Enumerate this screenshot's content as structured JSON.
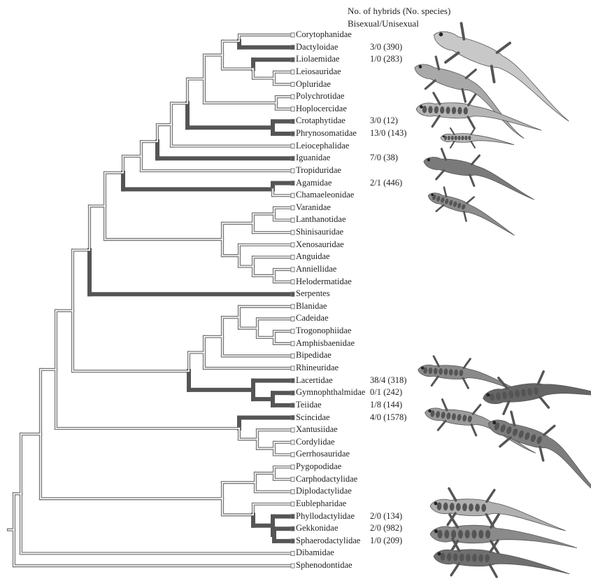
{
  "header": {
    "line1": "No. of hybrids (No. species)",
    "line2": "Bisexual/Unisexual"
  },
  "taxa": [
    {
      "name": "Corytophanidae",
      "hybrids": "",
      "highlight": false
    },
    {
      "name": "Dactyloidae",
      "hybrids": "3/0 (390)",
      "highlight": true
    },
    {
      "name": "Liolaemidae",
      "hybrids": "1/0 (283)",
      "highlight": true
    },
    {
      "name": "Leiosauridae",
      "hybrids": "",
      "highlight": false
    },
    {
      "name": "Opluridae",
      "hybrids": "",
      "highlight": false
    },
    {
      "name": "Polychrotidae",
      "hybrids": "",
      "highlight": false
    },
    {
      "name": "Hoplocercidae",
      "hybrids": "",
      "highlight": false
    },
    {
      "name": "Crotaphytidae",
      "hybrids": "3/0 (12)",
      "highlight": true
    },
    {
      "name": "Phrynosomatidae",
      "hybrids": "13/0 (143)",
      "highlight": true
    },
    {
      "name": "Leiocephalidae",
      "hybrids": "",
      "highlight": false
    },
    {
      "name": "Iguanidae",
      "hybrids": "7/0 (38)",
      "highlight": true
    },
    {
      "name": "Tropiduridae",
      "hybrids": "",
      "highlight": false
    },
    {
      "name": "Agamidae",
      "hybrids": "2/1 (446)",
      "highlight": true
    },
    {
      "name": "Chamaeleonidae",
      "hybrids": "",
      "highlight": false
    },
    {
      "name": "Varanidae",
      "hybrids": "",
      "highlight": false
    },
    {
      "name": "Lanthanotidae",
      "hybrids": "",
      "highlight": false
    },
    {
      "name": "Shinisauridae",
      "hybrids": "",
      "highlight": false
    },
    {
      "name": "Xenosauridae",
      "hybrids": "",
      "highlight": false
    },
    {
      "name": "Anguidae",
      "hybrids": "",
      "highlight": false
    },
    {
      "name": "Anniellidae",
      "hybrids": "",
      "highlight": false
    },
    {
      "name": "Helodermatidae",
      "hybrids": "",
      "highlight": false
    },
    {
      "name": "Serpentes",
      "hybrids": "",
      "highlight": true
    },
    {
      "name": "Blanidae",
      "hybrids": "",
      "highlight": false
    },
    {
      "name": "Cadeidae",
      "hybrids": "",
      "highlight": false
    },
    {
      "name": "Trogonophiidae",
      "hybrids": "",
      "highlight": false
    },
    {
      "name": "Amphisbaenidae",
      "hybrids": "",
      "highlight": false
    },
    {
      "name": "Bipedidae",
      "hybrids": "",
      "highlight": false
    },
    {
      "name": "Rhineuridae",
      "hybrids": "",
      "highlight": false
    },
    {
      "name": "Lacertidae",
      "hybrids": "38/4 (318)",
      "highlight": true
    },
    {
      "name": "Gymnophthalmidae",
      "hybrids": "0/1 (242)",
      "highlight": true
    },
    {
      "name": "Teiidae",
      "hybrids": "1/8 (144)",
      "highlight": true
    },
    {
      "name": "Scincidae",
      "hybrids": "4/0 (1578)",
      "highlight": true
    },
    {
      "name": "Xantusiidae",
      "hybrids": "",
      "highlight": false
    },
    {
      "name": "Cordylidae",
      "hybrids": "",
      "highlight": false
    },
    {
      "name": "Gerrhosauridae",
      "hybrids": "",
      "highlight": false
    },
    {
      "name": "Pygopodidae",
      "hybrids": "",
      "highlight": false
    },
    {
      "name": "Carphodactylidae",
      "hybrids": "",
      "highlight": false
    },
    {
      "name": "Diplodactylidae",
      "hybrids": "",
      "highlight": false
    },
    {
      "name": "Eublepharidae",
      "hybrids": "",
      "highlight": false
    },
    {
      "name": "Phyllodactylidae",
      "hybrids": "2/0 (134)",
      "highlight": true
    },
    {
      "name": "Gekkonidae",
      "hybrids": "2/0 (982)",
      "highlight": true
    },
    {
      "name": "Sphaerodactylidae",
      "hybrids": "1/0 (209)",
      "highlight": true
    },
    {
      "name": "Dibamidae",
      "hybrids": "",
      "highlight": false
    },
    {
      "name": "Sphenodontidae",
      "hybrids": "",
      "highlight": false
    }
  ],
  "illustrations": [
    "anole-lizard-illustration",
    "liolaemus-lizard-illustration",
    "collared-lizard-illustration",
    "horned-lizard-illustration",
    "iguana-illustration",
    "agamid-lizard-illustration",
    "lacertid-lizard-illustration",
    "teiid-lizard-illustration",
    "gymnophthalmid-lizard-illustration",
    "skink-illustration",
    "phyllodactylid-gecko-illustration",
    "gekkonid-gecko-illustration",
    "sphaerodactylid-gecko-illustration"
  ],
  "colors": {
    "branch": "#777777",
    "highlight_branch": "#555555",
    "text": "#222222"
  }
}
